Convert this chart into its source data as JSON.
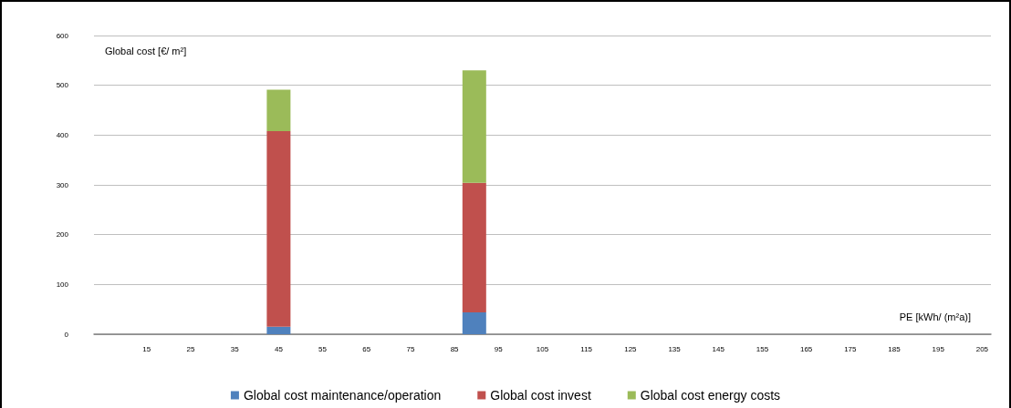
{
  "chart_data": {
    "type": "bar",
    "stacked": true,
    "ylabel": "Global cost [€/ m²]",
    "xlabel": "PE [kWh/ (m²a)]",
    "x": [
      45,
      89.5
    ],
    "series": [
      {
        "name": "Global cost maintenance/operation",
        "color": "#4f81bd",
        "values": [
          15,
          44
        ]
      },
      {
        "name": "Global cost invest",
        "color": "#c0504d",
        "values": [
          393,
          260
        ]
      },
      {
        "name": "Global cost energy costs",
        "color": "#9bbb59",
        "values": [
          83,
          226
        ]
      }
    ],
    "xlim": [
      3,
      207
    ],
    "xticks": [
      15,
      25,
      35,
      45,
      55,
      65,
      75,
      85,
      95,
      105,
      115,
      125,
      135,
      145,
      155,
      165,
      175,
      185,
      195,
      205
    ],
    "ylim": [
      0,
      600
    ],
    "yticks": [
      0,
      100,
      200,
      300,
      400,
      500,
      600
    ],
    "grid": "y",
    "legend": "bottom"
  }
}
